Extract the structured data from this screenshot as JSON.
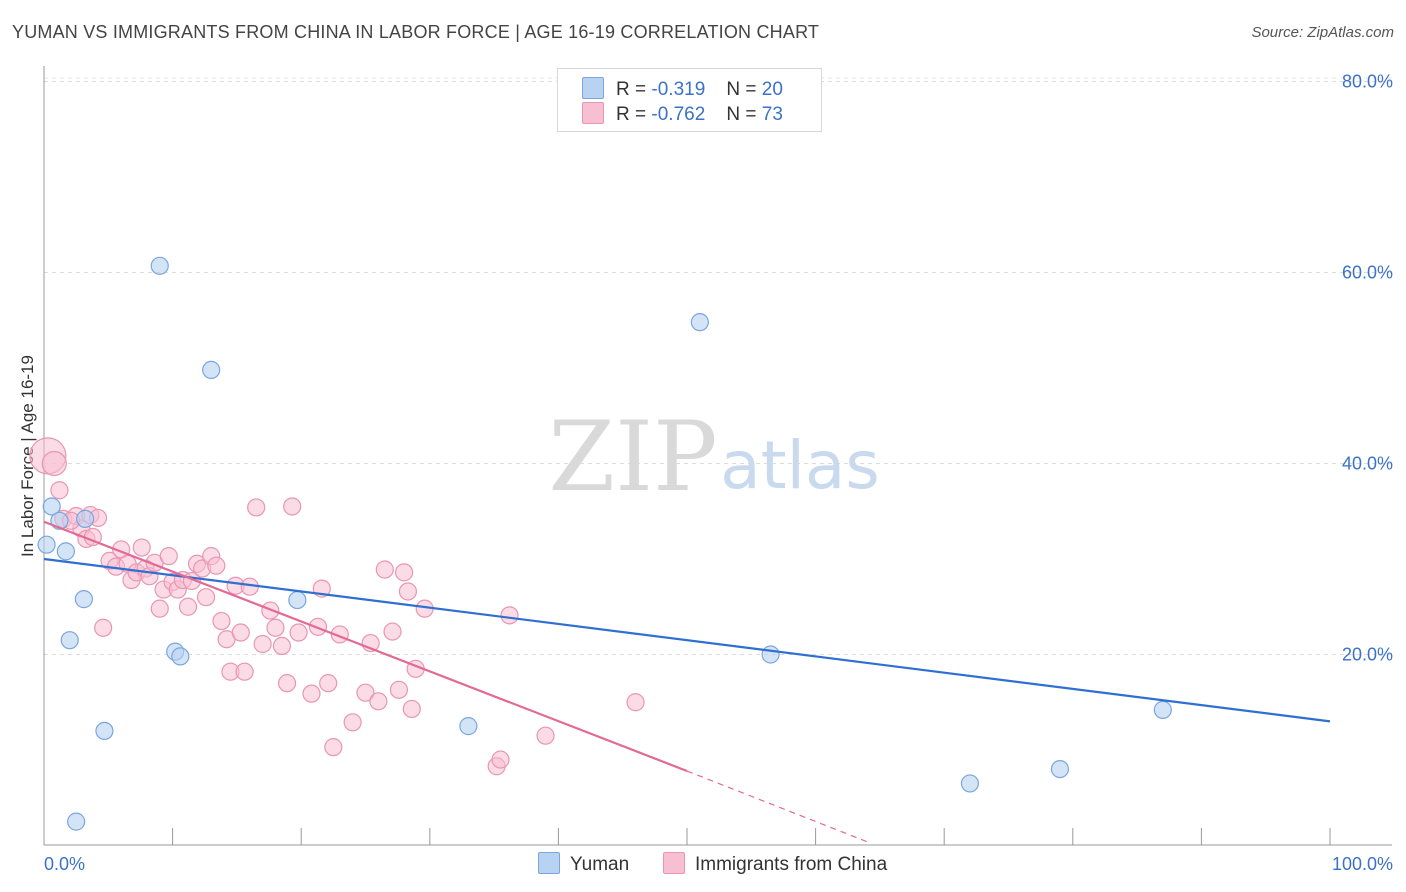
{
  "header": {
    "title": "YUMAN VS IMMIGRANTS FROM CHINA IN LABOR FORCE | AGE 16-19 CORRELATION CHART",
    "source": "Source: ZipAtlas.com"
  },
  "watermark": {
    "zip": "ZIP",
    "atlas": "atlas"
  },
  "legend": {
    "series1": {
      "r_label": "R =",
      "r_value": "-0.319",
      "n_label": "N =",
      "n_value": "20"
    },
    "series2": {
      "r_label": "R =",
      "r_value": "-0.762",
      "n_label": "N =",
      "n_value": "73"
    }
  },
  "bottom_legend": {
    "series1": "Yuman",
    "series2": "Immigrants from China"
  },
  "colors": {
    "series1_fill": "#b8d2f2",
    "series1_stroke": "#7aa6e0",
    "series1_line": "#2f6fd1",
    "series2_fill": "#f7c0d2",
    "series2_stroke": "#e995b3",
    "series2_line": "#e26a94",
    "tick_text": "#3b72c8"
  },
  "chart_data": {
    "type": "scatter",
    "title": "YUMAN VS IMMIGRANTS FROM CHINA IN LABOR FORCE | AGE 16-19 CORRELATION CHART",
    "xlabel": "",
    "ylabel": "In Labor Force | Age 16-19",
    "xlim": [
      0,
      100
    ],
    "ylim": [
      0,
      80
    ],
    "x_tick_labels": [
      "0.0%",
      "100.0%"
    ],
    "y_ticks": [
      {
        "value": 20,
        "label": "20.0%"
      },
      {
        "value": 40,
        "label": "40.0%"
      },
      {
        "value": 60,
        "label": "60.0%"
      },
      {
        "value": 80,
        "label": "80.0%"
      }
    ],
    "grid": true,
    "legend_position": "top-center",
    "series": [
      {
        "name": "Yuman",
        "points": [
          [
            0.2,
            31.5
          ],
          [
            0.6,
            35.5
          ],
          [
            1.2,
            34
          ],
          [
            1.7,
            30.8
          ],
          [
            2.0,
            21.5
          ],
          [
            3.1,
            25.8
          ],
          [
            3.2,
            34.2
          ],
          [
            4.7,
            12.0
          ],
          [
            9.0,
            60.7
          ],
          [
            10.2,
            20.3
          ],
          [
            10.6,
            19.8
          ],
          [
            13.0,
            49.8
          ],
          [
            19.7,
            25.7
          ],
          [
            33.0,
            12.5
          ],
          [
            51.0,
            54.8
          ],
          [
            56.5,
            20.0
          ],
          [
            72.0,
            6.5
          ],
          [
            79.0,
            8.0
          ],
          [
            87.0,
            14.2
          ],
          [
            2.5,
            2.5
          ]
        ],
        "trend": {
          "x": [
            0,
            100
          ],
          "y": [
            30,
            13
          ]
        }
      },
      {
        "name": "Immigrants from China",
        "points": [
          [
            0.3,
            40.8
          ],
          [
            0.8,
            40.0
          ],
          [
            1.2,
            37.2
          ],
          [
            1.5,
            34.2
          ],
          [
            2.5,
            34.5
          ],
          [
            2.9,
            33.2
          ],
          [
            3.3,
            32.1
          ],
          [
            3.6,
            34.6
          ],
          [
            3.8,
            32.3
          ],
          [
            4.2,
            34.3
          ],
          [
            4.6,
            22.8
          ],
          [
            5.1,
            29.8
          ],
          [
            5.6,
            29.2
          ],
          [
            6.0,
            31.0
          ],
          [
            6.5,
            29.5
          ],
          [
            6.8,
            27.8
          ],
          [
            7.2,
            28.6
          ],
          [
            7.6,
            31.2
          ],
          [
            7.9,
            29.0
          ],
          [
            8.2,
            28.2
          ],
          [
            8.6,
            29.6
          ],
          [
            9.0,
            24.8
          ],
          [
            9.3,
            26.8
          ],
          [
            9.7,
            30.3
          ],
          [
            10.0,
            27.6
          ],
          [
            10.4,
            26.8
          ],
          [
            10.8,
            27.8
          ],
          [
            11.2,
            25.0
          ],
          [
            11.5,
            27.7
          ],
          [
            11.9,
            29.5
          ],
          [
            12.3,
            29.0
          ],
          [
            12.6,
            26.0
          ],
          [
            13.0,
            30.3
          ],
          [
            13.4,
            29.3
          ],
          [
            13.8,
            23.5
          ],
          [
            14.2,
            21.6
          ],
          [
            14.5,
            18.2
          ],
          [
            14.9,
            27.2
          ],
          [
            15.3,
            22.3
          ],
          [
            15.6,
            18.2
          ],
          [
            16.0,
            27.1
          ],
          [
            16.5,
            35.4
          ],
          [
            17.0,
            21.1
          ],
          [
            17.6,
            24.6
          ],
          [
            18.0,
            22.8
          ],
          [
            18.5,
            20.9
          ],
          [
            18.9,
            17.0
          ],
          [
            19.3,
            35.5
          ],
          [
            19.8,
            22.3
          ],
          [
            20.8,
            15.9
          ],
          [
            21.3,
            22.9
          ],
          [
            21.6,
            26.9
          ],
          [
            22.1,
            17.0
          ],
          [
            22.5,
            10.3
          ],
          [
            23.0,
            22.1
          ],
          [
            24.0,
            12.9
          ],
          [
            25.0,
            16.0
          ],
          [
            25.4,
            21.2
          ],
          [
            26.0,
            15.1
          ],
          [
            26.5,
            28.9
          ],
          [
            27.1,
            22.4
          ],
          [
            27.6,
            16.3
          ],
          [
            28.0,
            28.6
          ],
          [
            28.3,
            26.6
          ],
          [
            28.6,
            14.3
          ],
          [
            28.9,
            18.5
          ],
          [
            29.6,
            24.8
          ],
          [
            35.2,
            8.3
          ],
          [
            35.5,
            9.0
          ],
          [
            36.2,
            24.1
          ],
          [
            39.0,
            11.5
          ],
          [
            46.0,
            15.0
          ],
          [
            2.1,
            34.0
          ]
        ],
        "trend": {
          "x": [
            0,
            50
          ],
          "y": [
            33.9,
            7.8
          ]
        },
        "trend_dashed_extension": {
          "x": [
            50,
            64
          ],
          "y": [
            7.8,
            0.4
          ]
        }
      }
    ]
  }
}
